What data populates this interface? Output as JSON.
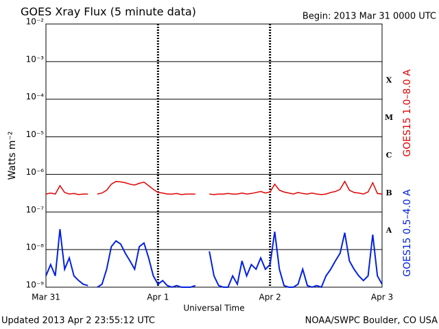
{
  "chart_data": {
    "type": "line",
    "title": "GOES Xray Flux (5 minute data)",
    "subtitle": "Begin:  2013 Mar 31 0000 UTC",
    "y_label": "Watts m⁻²",
    "x_label": "Universal Time",
    "footer_left": "Updated 2013 Apr  2 23:55:12 UTC",
    "footer_right": "NOAA/SWPC Boulder, CO USA",
    "class_labels": [
      "X",
      "M",
      "C",
      "B",
      "A"
    ],
    "y_scale": "log",
    "grid": true,
    "xlim": [
      0,
      72
    ],
    "xticks": [
      {
        "value": 0,
        "label": "Mar 31"
      },
      {
        "value": 24,
        "label": "Apr 1"
      },
      {
        "value": 48,
        "label": "Apr 2"
      },
      {
        "value": 72,
        "label": "Apr 3"
      }
    ],
    "ylim": [
      1e-09,
      0.01
    ],
    "yticks": [
      {
        "value": 1e-09,
        "label": "10⁻⁹"
      },
      {
        "value": 1e-08,
        "label": "10⁻⁸"
      },
      {
        "value": 1e-07,
        "label": "10⁻⁷"
      },
      {
        "value": 1e-06,
        "label": "10⁻⁶"
      },
      {
        "value": 1e-05,
        "label": "10⁻⁵"
      },
      {
        "value": 0.0001,
        "label": "10⁻⁴"
      },
      {
        "value": 0.001,
        "label": "10⁻³"
      },
      {
        "value": 0.01,
        "label": "10⁻²"
      }
    ],
    "x": [
      0,
      1,
      2,
      3,
      4,
      5,
      6,
      7,
      8,
      9,
      10,
      11,
      12,
      13,
      14,
      15,
      16,
      17,
      18,
      19,
      20,
      21,
      22,
      23,
      24,
      25,
      26,
      27,
      28,
      29,
      30,
      31,
      32,
      33,
      34,
      35,
      36,
      37,
      38,
      39,
      40,
      41,
      42,
      43,
      44,
      45,
      46,
      47,
      48,
      49,
      50,
      51,
      52,
      53,
      54,
      55,
      56,
      57,
      58,
      59,
      60,
      61,
      62,
      63,
      64,
      65,
      66,
      67,
      68,
      69,
      70,
      71,
      72
    ],
    "series": [
      {
        "name": "GOES15 1.0–8.0 A",
        "color": "#e00000",
        "values": [
          3e-07,
          3.2e-07,
          3e-07,
          5e-07,
          3.3e-07,
          3e-07,
          3.1e-07,
          2.9e-07,
          3e-07,
          3e-07,
          null,
          3e-07,
          3.2e-07,
          3.8e-07,
          5.5e-07,
          6.5e-07,
          6.3e-07,
          6e-07,
          5.5e-07,
          5.2e-07,
          5.8e-07,
          6.2e-07,
          5e-07,
          4e-07,
          3.3e-07,
          3.2e-07,
          3e-07,
          3e-07,
          3.1e-07,
          2.9e-07,
          3e-07,
          3e-07,
          3e-07,
          null,
          null,
          3e-07,
          2.9e-07,
          3e-07,
          3e-07,
          3.1e-07,
          3e-07,
          3e-07,
          3.2e-07,
          3e-07,
          3.1e-07,
          3.3e-07,
          3.5e-07,
          3.2e-07,
          3.4e-07,
          5.5e-07,
          3.8e-07,
          3.4e-07,
          3.2e-07,
          3e-07,
          3.3e-07,
          3.1e-07,
          3e-07,
          3.2e-07,
          3e-07,
          2.9e-07,
          3e-07,
          3.3e-07,
          3.5e-07,
          4e-07,
          6.5e-07,
          3.8e-07,
          3.3e-07,
          3.2e-07,
          3e-07,
          3.4e-07,
          6e-07,
          3.1e-07,
          3e-07
        ]
      },
      {
        "name": "GOES15 0.5–4.0 A",
        "color": "#0020e0",
        "values": [
          2e-09,
          4e-09,
          2e-09,
          3.5e-08,
          3e-09,
          6e-09,
          2e-09,
          1.5e-09,
          1.2e-09,
          1.1e-09,
          null,
          1e-09,
          1.2e-09,
          3e-09,
          1.2e-08,
          1.7e-08,
          1.4e-08,
          8e-09,
          5e-09,
          3e-09,
          1.2e-08,
          1.5e-08,
          6e-09,
          2e-09,
          1.2e-09,
          1.5e-09,
          1.1e-09,
          1e-09,
          1.1e-09,
          1e-09,
          1e-09,
          1e-09,
          1.1e-09,
          null,
          null,
          9e-09,
          2e-09,
          1.1e-09,
          1e-09,
          1e-09,
          2e-09,
          1.2e-09,
          5e-09,
          2e-09,
          4e-09,
          3e-09,
          6e-09,
          3e-09,
          4e-09,
          3e-08,
          3e-09,
          1.1e-09,
          1e-09,
          1e-09,
          1.2e-09,
          3e-09,
          1.1e-09,
          1e-09,
          1.1e-09,
          1e-09,
          2e-09,
          3e-09,
          5e-09,
          8e-09,
          2.8e-08,
          5e-09,
          3e-09,
          2e-09,
          1.5e-09,
          2e-09,
          2.5e-08,
          2e-09,
          1.2e-09
        ]
      }
    ]
  }
}
